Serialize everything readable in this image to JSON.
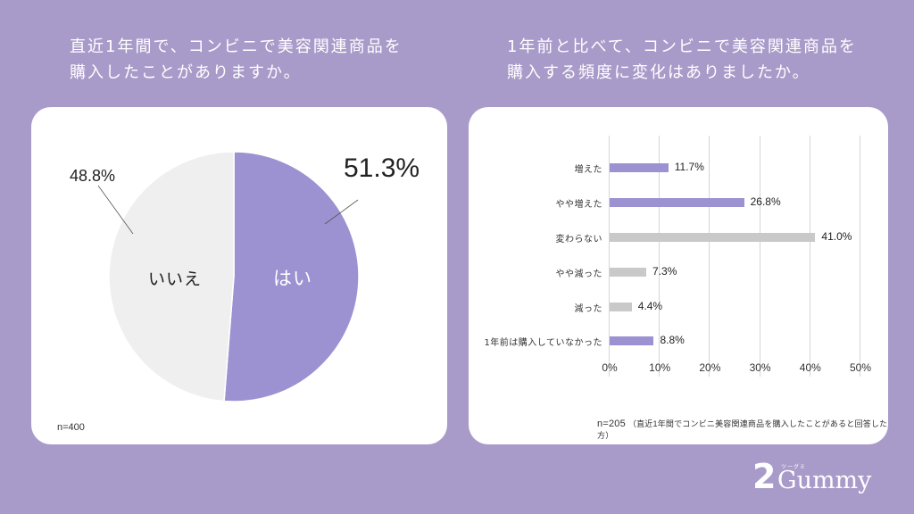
{
  "colors": {
    "background": "#a99bc9",
    "card": "#ffffff",
    "accent_purple": "#9c91d1",
    "neutral_gray": "#c9c9c9",
    "pie_no": "#efefef"
  },
  "left_panel": {
    "question_line1": "直近1年間で、コンビニで美容関連商品を",
    "question_line2": "購入したことがありますか。",
    "sample": "n=400"
  },
  "right_panel": {
    "question_line1": "1年前と比べて、コンビニで美容関連商品を",
    "question_line2": "購入する頻度に変化はありましたか。",
    "sample_num": "n=205",
    "sample_note": "（直近1年間でコンビニ美容関連商品を購入したことがあると回答した方）"
  },
  "logo": {
    "number": "2",
    "word": "Gummy",
    "ruby": "ツーグミ"
  },
  "chart_data": [
    {
      "type": "pie",
      "title": "直近1年間で、コンビニで美容関連商品を購入したことがありますか。",
      "categories": [
        "はい",
        "いいえ"
      ],
      "values": [
        51.3,
        48.8
      ],
      "value_labels": [
        "51.3%",
        "48.8%"
      ],
      "colors": [
        "#9c91d1",
        "#efefef"
      ],
      "n": 400
    },
    {
      "type": "bar",
      "orientation": "horizontal",
      "title": "1年前と比べて、コンビニで美容関連商品を購入する頻度に変化はありましたか。",
      "categories": [
        "増えた",
        "やや増えた",
        "変わらない",
        "やや減った",
        "減った",
        "1年前は購入していなかった"
      ],
      "values": [
        11.7,
        26.8,
        41.0,
        7.3,
        4.4,
        8.8
      ],
      "value_labels": [
        "11.7%",
        "26.8%",
        "41.0%",
        "7.3%",
        "4.4%",
        "8.8%"
      ],
      "colors": [
        "#9c91d1",
        "#9c91d1",
        "#c9c9c9",
        "#c9c9c9",
        "#c9c9c9",
        "#9c91d1"
      ],
      "xlim": [
        0,
        50
      ],
      "xticks": [
        "0%",
        "10%",
        "20%",
        "30%",
        "40%",
        "50%"
      ],
      "grid": true,
      "n": 205
    }
  ]
}
